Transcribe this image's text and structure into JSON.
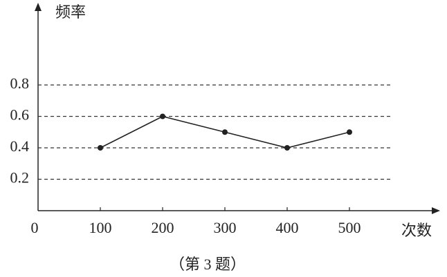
{
  "chart_data": {
    "type": "line",
    "ylabel": "频率",
    "xlabel": "次数",
    "caption": "（第 3 题）",
    "x": [
      100,
      200,
      300,
      400,
      500
    ],
    "values": [
      0.4,
      0.6,
      0.5,
      0.4,
      0.5
    ],
    "color": "#222222",
    "xlim": [
      0,
      640
    ],
    "xticks": [
      0,
      100,
      200,
      300,
      400,
      500
    ],
    "ylim": [
      0,
      1.3
    ],
    "yticks": [
      0.2,
      0.4,
      0.6,
      0.8
    ],
    "grid": true
  }
}
